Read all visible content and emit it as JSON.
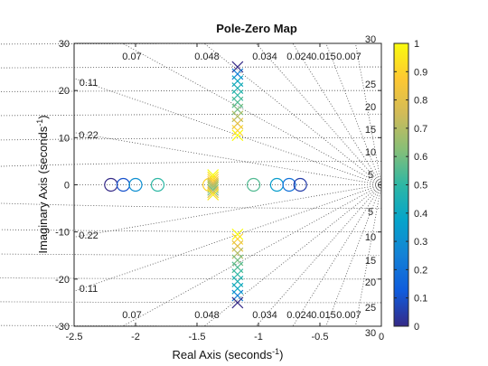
{
  "chart_data": {
    "type": "scatter",
    "title": "Pole-Zero Map",
    "xlabel": "Real Axis (seconds",
    "ylabel": "Imaginary Axis (seconds",
    "unit_superscript": "-1",
    "xlim": [
      -2.5,
      0
    ],
    "ylim": [
      -30,
      30
    ],
    "xticks": [
      "-2.5",
      "-2",
      "-1.5",
      "-1",
      "-0.5",
      "0"
    ],
    "yticks": [
      "-30",
      "-20",
      "-10",
      "0",
      "10",
      "20",
      "30"
    ],
    "grid": true,
    "damping_labels_top": [
      "0.07",
      "0.048",
      "0.034",
      "0.024",
      "0.015",
      "0.007"
    ],
    "damping_labels_left": [
      "0.11",
      "0.22"
    ],
    "damping_labels_bottom": [
      "0.07",
      "0.048",
      "0.034",
      "0.024",
      "0.015",
      "0.007"
    ],
    "damping_labels_left_lower": [
      "0.22",
      "0.11"
    ],
    "frequency_labels_upper": [
      "30",
      "25",
      "20",
      "15",
      "10",
      "5"
    ],
    "frequency_labels_lower": [
      "5",
      "10",
      "15",
      "20",
      "25",
      "30"
    ],
    "damping_values": [
      0.007,
      0.015,
      0.024,
      0.034,
      0.048,
      0.07,
      0.11,
      0.22
    ],
    "frequency_values": [
      5,
      10,
      15,
      20,
      25,
      30
    ],
    "colorbar": {
      "ticks": [
        "0",
        "0.1",
        "0.2",
        "0.3",
        "0.4",
        "0.5",
        "0.6",
        "0.7",
        "0.8",
        "0.9",
        "1"
      ],
      "range": [
        0,
        1
      ],
      "colormap": "parula",
      "colors": [
        "#352a87",
        "#0f5cdd",
        "#1481d6",
        "#06a4ca",
        "#2eb7a4",
        "#87bf77",
        "#d1bb59",
        "#fec832",
        "#f9fb0e"
      ]
    },
    "series": [
      {
        "marker": "o",
        "points": [
          {
            "x": -2.2,
            "y": 0,
            "c": 0.0
          },
          {
            "x": -2.1,
            "y": 0,
            "c": 0.1
          },
          {
            "x": -2.0,
            "y": 0,
            "c": 0.3
          },
          {
            "x": -1.82,
            "y": 0,
            "c": 0.5
          },
          {
            "x": -1.4,
            "y": 0,
            "c": 0.9
          },
          {
            "x": -1.04,
            "y": 0,
            "c": 0.55
          },
          {
            "x": -0.85,
            "y": 0,
            "c": 0.35
          },
          {
            "x": -0.75,
            "y": 0,
            "c": 0.2
          },
          {
            "x": -0.66,
            "y": 0,
            "c": 0.05
          }
        ]
      },
      {
        "marker": "x",
        "points": [
          {
            "x": -1.37,
            "y": 2.1,
            "c": 1.0
          },
          {
            "x": -1.37,
            "y": 1.6,
            "c": 0.95
          },
          {
            "x": -1.37,
            "y": 1.1,
            "c": 0.9
          },
          {
            "x": -1.37,
            "y": 0.6,
            "c": 0.85
          },
          {
            "x": -1.37,
            "y": 0.2,
            "c": 0.75
          },
          {
            "x": -1.37,
            "y": -0.2,
            "c": 0.7
          },
          {
            "x": -1.37,
            "y": -0.6,
            "c": 0.65
          },
          {
            "x": -1.37,
            "y": -1.1,
            "c": 0.6
          },
          {
            "x": -1.37,
            "y": -1.6,
            "c": 0.8
          },
          {
            "x": -1.37,
            "y": -2.1,
            "c": 0.95
          },
          {
            "x": -1.17,
            "y": 25.0,
            "c": 0.0
          },
          {
            "x": -1.17,
            "y": 23.5,
            "c": 0.25
          },
          {
            "x": -1.17,
            "y": 22.0,
            "c": 0.4
          },
          {
            "x": -1.17,
            "y": 20.5,
            "c": 0.45
          },
          {
            "x": -1.17,
            "y": 19.0,
            "c": 0.5
          },
          {
            "x": -1.17,
            "y": 17.5,
            "c": 0.55
          },
          {
            "x": -1.17,
            "y": 16.0,
            "c": 0.6
          },
          {
            "x": -1.17,
            "y": 14.5,
            "c": 0.7
          },
          {
            "x": -1.17,
            "y": 13.0,
            "c": 0.8
          },
          {
            "x": -1.17,
            "y": 11.5,
            "c": 0.9
          },
          {
            "x": -1.17,
            "y": 10.5,
            "c": 1.0
          },
          {
            "x": -1.17,
            "y": -10.5,
            "c": 1.0
          },
          {
            "x": -1.17,
            "y": -11.5,
            "c": 0.9
          },
          {
            "x": -1.17,
            "y": -13.0,
            "c": 0.8
          },
          {
            "x": -1.17,
            "y": -14.5,
            "c": 0.7
          },
          {
            "x": -1.17,
            "y": -16.0,
            "c": 0.6
          },
          {
            "x": -1.17,
            "y": -17.5,
            "c": 0.55
          },
          {
            "x": -1.17,
            "y": -19.0,
            "c": 0.5
          },
          {
            "x": -1.17,
            "y": -20.5,
            "c": 0.45
          },
          {
            "x": -1.17,
            "y": -22.0,
            "c": 0.4
          },
          {
            "x": -1.17,
            "y": -23.5,
            "c": 0.25
          },
          {
            "x": -1.17,
            "y": -25.0,
            "c": 0.0
          }
        ]
      }
    ]
  }
}
